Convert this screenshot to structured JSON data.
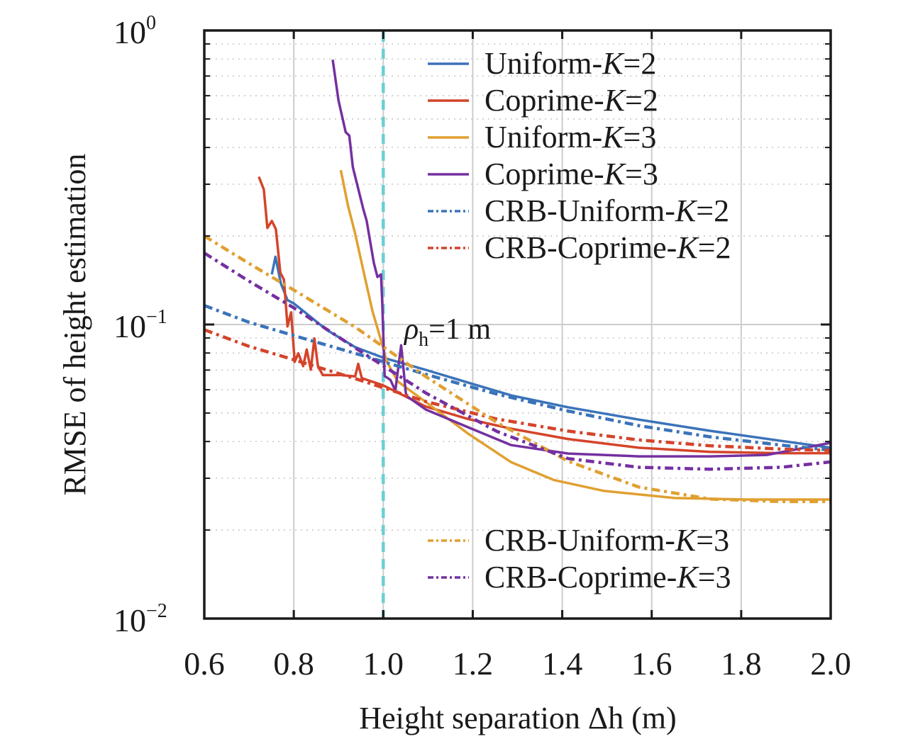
{
  "chart_data": {
    "type": "line",
    "title": "",
    "xlabel": "Height separation Δh (m)",
    "ylabel": "RMSE of height estimation",
    "xlim": [
      0.6,
      2.0
    ],
    "ylim": [
      0.01,
      1
    ],
    "yscale": "log",
    "grid": true,
    "xticks": [
      0.6,
      0.8,
      1.0,
      1.2,
      1.4,
      1.6,
      1.8,
      2.0
    ],
    "xtick_labels": [
      "0.6",
      "0.8",
      "1.0",
      "1.2",
      "1.4",
      "1.6",
      "1.8",
      "2.0"
    ],
    "yticks": [
      {
        "value": 1,
        "base": "10",
        "exp": "0"
      },
      {
        "value": 0.1,
        "base": "10",
        "exp": "−1"
      },
      {
        "value": 0.01,
        "base": "10",
        "exp": "−2"
      }
    ],
    "annotation": {
      "symbol": "ρ",
      "subscript": "h",
      "text": "=1 m",
      "x": 1.0,
      "marker_line_color": "#6ccfd3"
    },
    "legend_placement": "top-right and bottom-right",
    "series": [
      {
        "name": "Uniform-K=2",
        "prefix": "Uniform-",
        "legend_group": "top",
        "style": "solid",
        "color": "#3b73b9",
        "x": [
          0.751,
          0.759,
          0.771,
          0.786,
          0.8,
          0.825,
          0.873,
          0.937,
          1.0,
          1.095,
          1.19,
          1.286,
          1.413,
          1.571,
          1.73,
          1.889,
          2.0
        ],
        "y": [
          0.148,
          0.17,
          0.138,
          0.121,
          0.118,
          0.11,
          0.096,
          0.0838,
          0.0771,
          0.0701,
          0.0634,
          0.0574,
          0.0523,
          0.0475,
          0.0435,
          0.0402,
          0.0381
        ]
      },
      {
        "name": "Coprime-K=2",
        "prefix": "Coprime-",
        "legend_group": "top",
        "style": "solid",
        "color": "#d4442a",
        "x": [
          0.722,
          0.733,
          0.741,
          0.751,
          0.76,
          0.77,
          0.778,
          0.786,
          0.794,
          0.802,
          0.81,
          0.821,
          0.829,
          0.838,
          0.846,
          0.854,
          0.865,
          0.905,
          0.937,
          0.944,
          0.952,
          1.0,
          1.095,
          1.19,
          1.286,
          1.413,
          1.571,
          1.73,
          1.889,
          2.0
        ],
        "y": [
          0.318,
          0.288,
          0.213,
          0.225,
          0.211,
          0.15,
          0.142,
          0.0985,
          0.11,
          0.0746,
          0.0798,
          0.0722,
          0.0822,
          0.0702,
          0.0897,
          0.0722,
          0.0673,
          0.0673,
          0.0666,
          0.0735,
          0.0657,
          0.0621,
          0.0526,
          0.0477,
          0.0442,
          0.0408,
          0.0381,
          0.0369,
          0.0365,
          0.0365
        ]
      },
      {
        "name": "Uniform-K=3",
        "prefix": "Uniform-",
        "legend_group": "top",
        "style": "solid",
        "color": "#e0a030",
        "x": [
          0.905,
          0.921,
          0.937,
          0.96,
          0.976,
          0.992,
          1.008,
          1.032,
          1.095,
          1.19,
          1.286,
          1.381,
          1.492,
          1.651,
          1.81,
          2.0
        ],
        "y": [
          0.335,
          0.254,
          0.204,
          0.142,
          0.111,
          0.0917,
          0.0748,
          0.0641,
          0.0545,
          0.0425,
          0.034,
          0.0296,
          0.0272,
          0.0257,
          0.0254,
          0.0254
        ]
      },
      {
        "name": "Coprime-K=3",
        "prefix": "Coprime-",
        "legend_group": "top",
        "style": "solid",
        "color": "#7530a0",
        "x": [
          0.887,
          0.9,
          0.916,
          0.924,
          0.932,
          0.956,
          0.963,
          0.979,
          0.987,
          0.995,
          0.998,
          1.003,
          1.016,
          1.027,
          1.04,
          1.051,
          1.095,
          1.19,
          1.286,
          1.413,
          1.571,
          1.73,
          1.857,
          2.0
        ],
        "y": [
          0.795,
          0.578,
          0.451,
          0.439,
          0.343,
          0.245,
          0.225,
          0.162,
          0.145,
          0.148,
          0.116,
          0.0668,
          0.0648,
          0.0596,
          0.085,
          0.0573,
          0.0514,
          0.0447,
          0.0389,
          0.0364,
          0.0356,
          0.0356,
          0.036,
          0.0396
        ]
      },
      {
        "name": "CRB-Uniform-K=2",
        "prefix": "CRB-Uniform-",
        "legend_group": "top",
        "style": "dashdot",
        "color": "#3b73b9",
        "x": [
          0.6,
          0.698,
          0.8,
          0.937,
          1.095,
          1.254,
          1.413,
          1.571,
          1.73,
          1.889,
          2.0
        ],
        "y": [
          0.116,
          0.102,
          0.0917,
          0.0798,
          0.0677,
          0.058,
          0.0508,
          0.0453,
          0.0415,
          0.0389,
          0.0374
        ]
      },
      {
        "name": "CRB-Coprime-K=2",
        "prefix": "CRB-Coprime-",
        "legend_group": "top",
        "style": "dashdot",
        "color": "#d4442a",
        "x": [
          0.6,
          0.698,
          0.8,
          0.937,
          1.095,
          1.254,
          1.413,
          1.571,
          1.73,
          1.889,
          2.0
        ],
        "y": [
          0.096,
          0.0845,
          0.0759,
          0.0655,
          0.0547,
          0.0477,
          0.0434,
          0.0405,
          0.0387,
          0.0377,
          0.0373
        ]
      },
      {
        "name": "CRB-Uniform-K=3",
        "prefix": "CRB-Uniform-",
        "legend_group": "bottom",
        "style": "dashdot",
        "color": "#e0a030",
        "x": [
          0.6,
          0.698,
          0.8,
          0.937,
          1.095,
          1.254,
          1.413,
          1.571,
          1.73,
          1.889,
          2.0
        ],
        "y": [
          0.2,
          0.162,
          0.131,
          0.098,
          0.0665,
          0.0464,
          0.0343,
          0.028,
          0.0255,
          0.025,
          0.025
        ]
      },
      {
        "name": "CRB-Coprime-K=3",
        "prefix": "CRB-Coprime-",
        "legend_group": "bottom",
        "style": "dashdot",
        "color": "#7530a0",
        "x": [
          0.6,
          0.698,
          0.8,
          0.937,
          1.095,
          1.254,
          1.413,
          1.571,
          1.73,
          1.889,
          2.0
        ],
        "y": [
          0.175,
          0.141,
          0.114,
          0.0833,
          0.0585,
          0.0433,
          0.035,
          0.0327,
          0.0322,
          0.0327,
          0.0341
        ]
      }
    ]
  }
}
